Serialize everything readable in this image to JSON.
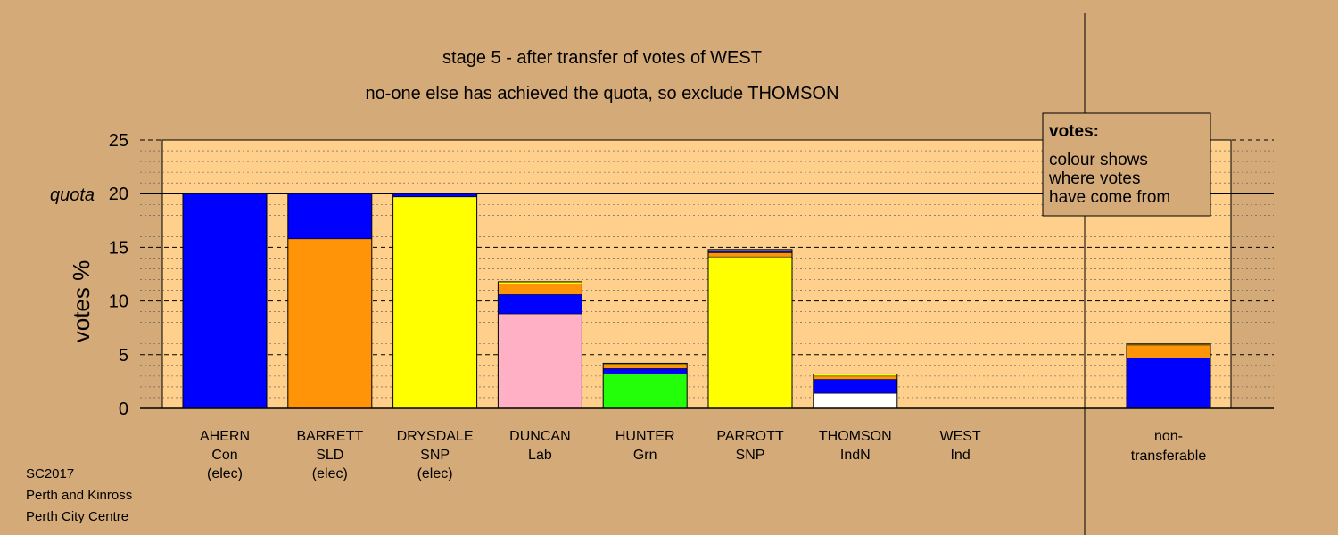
{
  "chart_data": {
    "type": "bar",
    "stacked": true,
    "title": "stage 5 - after transfer of votes of WEST",
    "subtitle": "no-one else has achieved the quota, so exclude THOMSON",
    "ylabel": "votes %",
    "ylim": [
      0,
      25
    ],
    "yticks": [
      "0",
      "5",
      "10",
      "15",
      "20",
      "25"
    ],
    "quota": {
      "label": "quota",
      "value": 20
    },
    "grid": true,
    "legend": {
      "placement": "top-right",
      "heading": "votes:",
      "lines": [
        "colour shows",
        "where votes",
        "have come from"
      ]
    },
    "colors": {
      "blue": "#0000ff",
      "orange": "#ff9408",
      "yellow": "#ffff00",
      "pink": "#ffb0c4",
      "green": "#22ff08",
      "white": "#ffffff",
      "background": "#d4aa78",
      "plot_area": "#ffd08c"
    },
    "bars": [
      {
        "name": "AHERN",
        "party": "Con",
        "status": "(elec)",
        "segments": [
          {
            "color": "blue",
            "value": 20.0
          }
        ]
      },
      {
        "name": "BARRETT",
        "party": "SLD",
        "status": "(elec)",
        "segments": [
          {
            "color": "orange",
            "value": 15.8
          },
          {
            "color": "blue",
            "value": 4.2
          }
        ]
      },
      {
        "name": "DRYSDALE",
        "party": "SNP",
        "status": "(elec)",
        "segments": [
          {
            "color": "yellow",
            "value": 19.7
          },
          {
            "color": "blue",
            "value": 0.3
          }
        ]
      },
      {
        "name": "DUNCAN",
        "party": "Lab",
        "status": "",
        "segments": [
          {
            "color": "pink",
            "value": 8.8
          },
          {
            "color": "blue",
            "value": 1.8
          },
          {
            "color": "orange",
            "value": 1.0
          },
          {
            "color": "yellow",
            "value": 0.2
          }
        ]
      },
      {
        "name": "HUNTER",
        "party": "Grn",
        "status": "",
        "segments": [
          {
            "color": "green",
            "value": 3.2
          },
          {
            "color": "blue",
            "value": 0.5
          },
          {
            "color": "orange",
            "value": 0.4
          },
          {
            "color": "yellow",
            "value": 0.1
          }
        ]
      },
      {
        "name": "PARROTT",
        "party": "SNP",
        "status": "",
        "segments": [
          {
            "color": "yellow",
            "value": 14.1
          },
          {
            "color": "orange",
            "value": 0.4
          },
          {
            "color": "blue",
            "value": 0.2
          },
          {
            "color": "yellow",
            "value": 0.1
          }
        ]
      },
      {
        "name": "THOMSON",
        "party": "IndN",
        "status": "",
        "segments": [
          {
            "color": "white",
            "value": 1.4
          },
          {
            "color": "blue",
            "value": 1.3
          },
          {
            "color": "orange",
            "value": 0.3
          },
          {
            "color": "yellow",
            "value": 0.2
          }
        ]
      },
      {
        "name": "WEST",
        "party": "Ind",
        "status": "",
        "segments": []
      }
    ],
    "non_transferable": {
      "label_lines": [
        "non-",
        "transferable"
      ],
      "segments": [
        {
          "color": "blue",
          "value": 4.7
        },
        {
          "color": "orange",
          "value": 1.2
        },
        {
          "color": "yellow",
          "value": 0.1
        }
      ]
    }
  },
  "footer": {
    "lines": [
      "SC2017",
      "Perth and Kinross",
      "Perth City Centre"
    ]
  }
}
